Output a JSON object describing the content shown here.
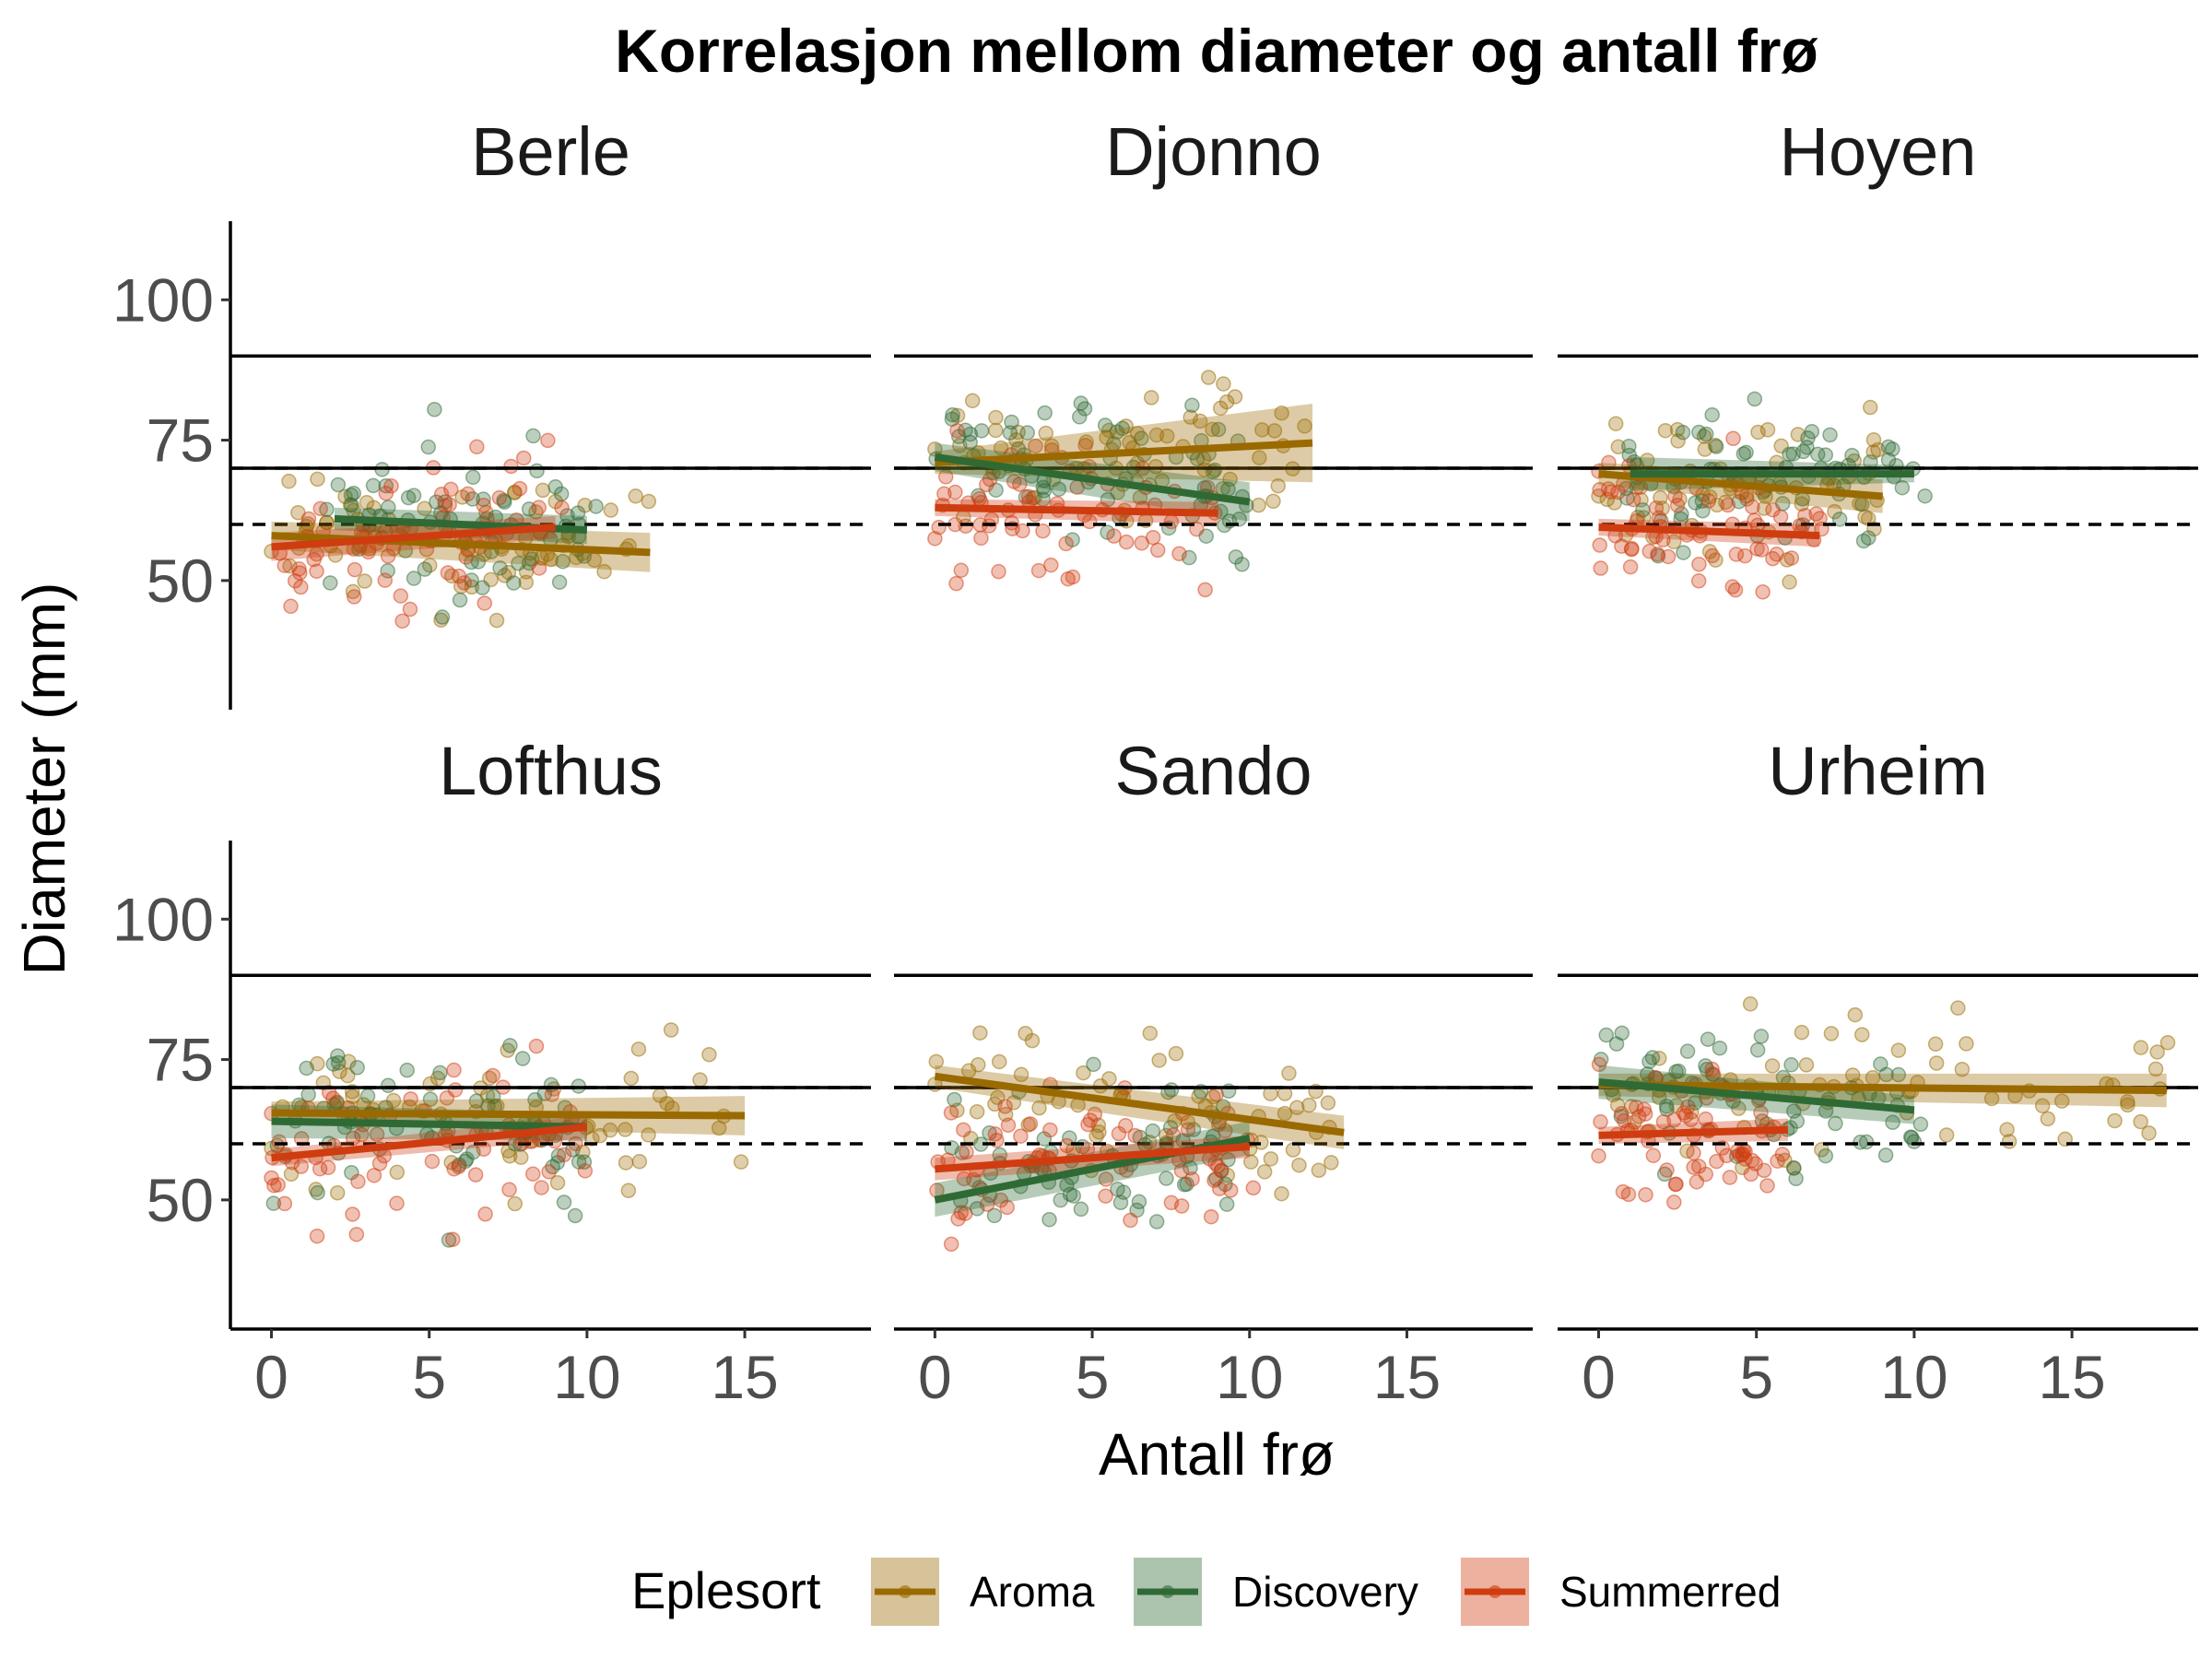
{
  "chart_data": {
    "type": "scatter",
    "title": "Korrelasjon mellom diameter og antall frø",
    "xlabel": "Antall frø",
    "ylabel": "Diameter (mm)",
    "xlim": [
      -1.3,
      19
    ],
    "ylim": [
      27,
      114
    ],
    "x_ticks": [
      "0",
      "5",
      "10",
      "15"
    ],
    "x_tick_values": [
      0,
      5,
      10,
      15
    ],
    "y_ticks": [
      "50",
      "75",
      "100"
    ],
    "y_tick_values": [
      50,
      75,
      100
    ],
    "reference_lines": [
      {
        "y": 90,
        "style": "solid"
      },
      {
        "y": 70,
        "style": "solid"
      },
      {
        "y": 70,
        "style": "dashed"
      },
      {
        "y": 60,
        "style": "dashed"
      }
    ],
    "legend": {
      "title": "Eplesort",
      "position": "bottom",
      "entries": [
        {
          "name": "Aroma",
          "color": "#9a6a00"
        },
        {
          "name": "Discovery",
          "color": "#2f6a35"
        },
        {
          "name": "Summerred",
          "color": "#cf3c10"
        }
      ]
    },
    "grid": false,
    "panels": [
      {
        "name": "Berle",
        "fits": [
          {
            "series": "Aroma",
            "x": [
              0,
              12
            ],
            "y": [
              58,
              55
            ],
            "se": [
              2.5,
              3.5
            ]
          },
          {
            "series": "Discovery",
            "x": [
              2,
              10
            ],
            "y": [
              61,
              59
            ],
            "se": [
              2,
              2.5
            ]
          },
          {
            "series": "Summerred",
            "x": [
              0,
              9
            ],
            "y": [
              56,
              59.5
            ],
            "se": [
              2.5,
              2
            ]
          }
        ]
      },
      {
        "name": "Djonno",
        "fits": [
          {
            "series": "Aroma",
            "x": [
              0,
              12
            ],
            "y": [
              71,
              74.5
            ],
            "se": [
              2,
              7
            ]
          },
          {
            "series": "Discovery",
            "x": [
              0,
              10
            ],
            "y": [
              72,
              64
            ],
            "se": [
              2.5,
              3.5
            ]
          },
          {
            "series": "Summerred",
            "x": [
              0,
              9
            ],
            "y": [
              63,
              62
            ],
            "se": [
              1.5,
              2
            ]
          }
        ]
      },
      {
        "name": "Hoyen",
        "fits": [
          {
            "series": "Aroma",
            "x": [
              0,
              9
            ],
            "y": [
              69,
              65
            ],
            "se": [
              2,
              3
            ]
          },
          {
            "series": "Discovery",
            "x": [
              1,
              10
            ],
            "y": [
              69,
              69
            ],
            "se": [
              3,
              1.5
            ]
          },
          {
            "series": "Summerred",
            "x": [
              0,
              7
            ],
            "y": [
              59.5,
              58
            ],
            "se": [
              1.5,
              2
            ]
          }
        ]
      },
      {
        "name": "Lofthus",
        "fits": [
          {
            "series": "Aroma",
            "x": [
              0,
              15
            ],
            "y": [
              65.5,
              65
            ],
            "se": [
              2,
              3.5
            ]
          },
          {
            "series": "Discovery",
            "x": [
              0,
              10
            ],
            "y": [
              64,
              63
            ],
            "se": [
              3,
              2.5
            ]
          },
          {
            "series": "Summerred",
            "x": [
              0,
              10
            ],
            "y": [
              57.5,
              63
            ],
            "se": [
              1.5,
              2
            ]
          }
        ]
      },
      {
        "name": "Sando",
        "fits": [
          {
            "series": "Aroma",
            "x": [
              0,
              13
            ],
            "y": [
              72,
              62
            ],
            "se": [
              2,
              3
            ]
          },
          {
            "series": "Discovery",
            "x": [
              0,
              10
            ],
            "y": [
              50,
              61
            ],
            "se": [
              3,
              3
            ]
          },
          {
            "series": "Summerred",
            "x": [
              0,
              10
            ],
            "y": [
              55.5,
              59.5
            ],
            "se": [
              2,
              2
            ]
          }
        ]
      },
      {
        "name": "Urheim",
        "fits": [
          {
            "series": "Aroma",
            "x": [
              0,
              18
            ],
            "y": [
              70.5,
              69.5
            ],
            "se": [
              2,
              3
            ]
          },
          {
            "series": "Discovery",
            "x": [
              0,
              10
            ],
            "y": [
              71,
              66
            ],
            "se": [
              3,
              2.5
            ]
          },
          {
            "series": "Summerred",
            "x": [
              0,
              6
            ],
            "y": [
              61.5,
              62.5
            ],
            "se": [
              1.5,
              2
            ]
          }
        ]
      }
    ]
  }
}
